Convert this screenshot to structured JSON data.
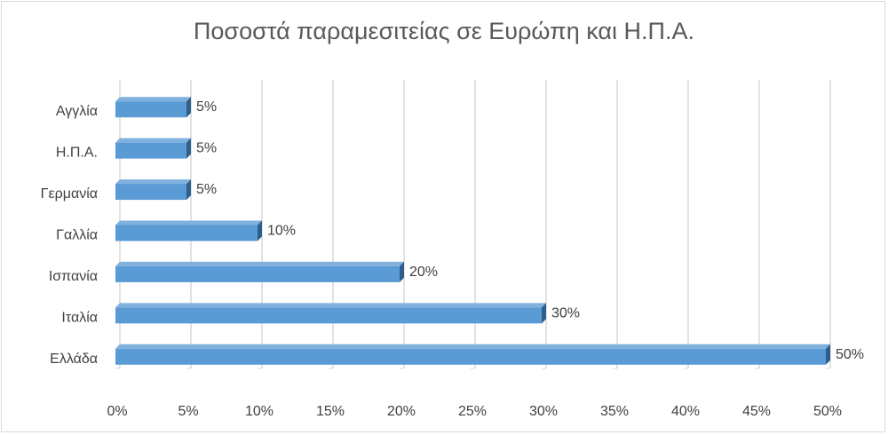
{
  "chart_data": {
    "type": "bar",
    "orientation": "horizontal",
    "title": "Ποσοστά παραμεσιτείας σε Ευρώπη και Η.Π.Α.",
    "categories": [
      "Αγγλία",
      "Η.Π.Α.",
      "Γερμανία",
      "Γαλλία",
      "Ισπανία",
      "Ιταλία",
      "Ελλάδα"
    ],
    "values": [
      5,
      5,
      5,
      10,
      20,
      30,
      50
    ],
    "data_labels": [
      "5%",
      "5%",
      "5%",
      "10%",
      "20%",
      "30%",
      "50%"
    ],
    "x_ticks": [
      0,
      5,
      10,
      15,
      20,
      25,
      30,
      35,
      40,
      45,
      50
    ],
    "x_tick_labels": [
      "0%",
      "5%",
      "10%",
      "15%",
      "20%",
      "25%",
      "30%",
      "35%",
      "40%",
      "45%",
      "50%"
    ],
    "xlim": [
      0,
      50
    ],
    "grid": true,
    "colors": {
      "bar_front": "#5b9bd5",
      "bar_top": "#7fb0de",
      "bar_side": "#2e5f8c",
      "grid": "#d9d9d9"
    }
  }
}
